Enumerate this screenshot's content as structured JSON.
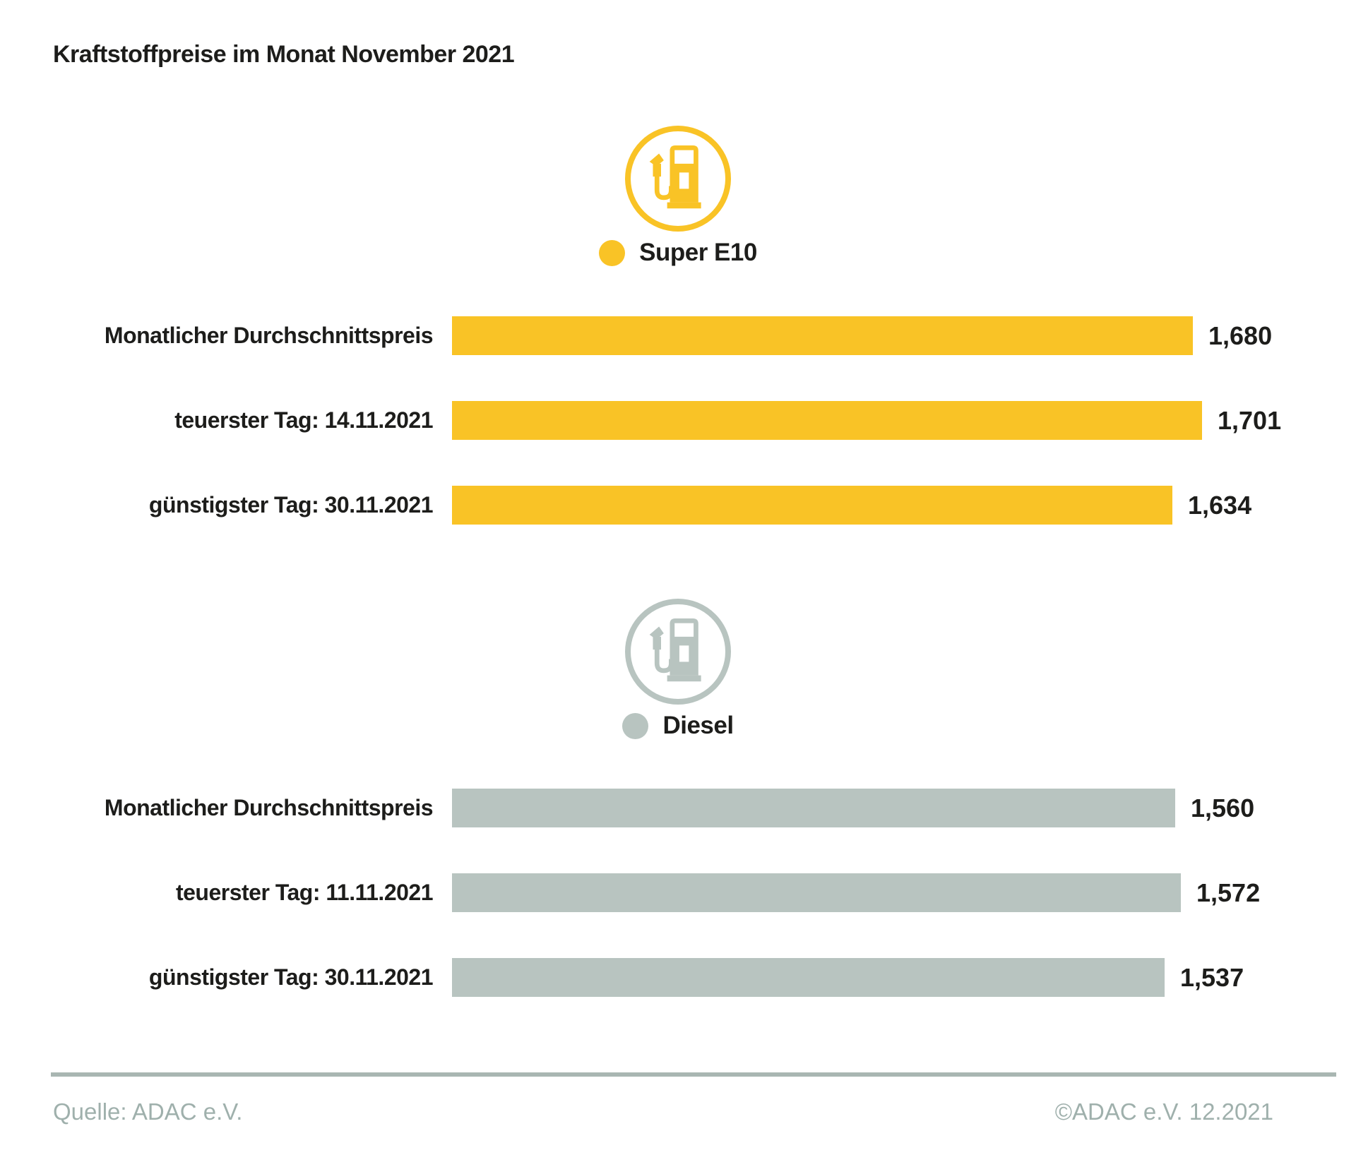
{
  "page": {
    "title": "Kraftstoffpreise im Monat November 2021"
  },
  "footer": {
    "source": "Quelle: ADAC e.V.",
    "copyright": "©ADAC e.V. 12.2021"
  },
  "colors": {
    "super_e10": "#f9c326",
    "diesel": "#b8c4c0",
    "text": "#1d1d1b",
    "footer_text": "#9fb0ac",
    "footer_rule": "#a9b6b2"
  },
  "chart_data": [
    {
      "type": "bar",
      "orientation": "horizontal",
      "series_name": "Super E10",
      "color": "#f9c326",
      "icon": "fuel-pump-icon",
      "categories": [
        "Monatlicher Durchschnittspreis",
        "teuerster Tag: 14.11.2021",
        "günstigster Tag: 30.11.2021"
      ],
      "values": [
        1.68,
        1.701,
        1.634
      ],
      "value_labels": [
        "1,680",
        "1,701",
        "1,634"
      ]
    },
    {
      "type": "bar",
      "orientation": "horizontal",
      "series_name": "Diesel",
      "color": "#b8c4c0",
      "icon": "fuel-pump-icon",
      "categories": [
        "Monatlicher Durchschnittspreis",
        "teuerster Tag: 11.11.2021",
        "günstigster Tag: 30.11.2021"
      ],
      "values": [
        1.56,
        1.572,
        1.537
      ],
      "value_labels": [
        "1,560",
        "1,572",
        "1,537"
      ]
    }
  ]
}
